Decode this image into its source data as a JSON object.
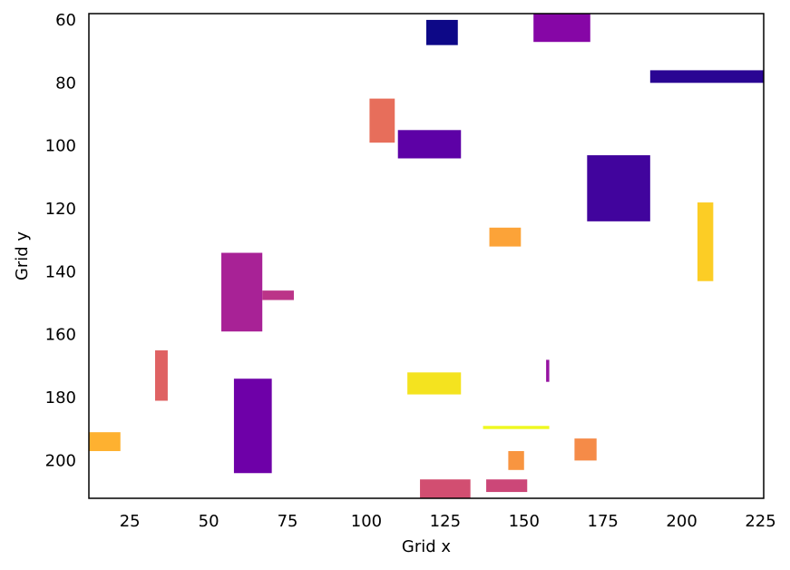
{
  "chart_data": {
    "type": "rectangles",
    "xlabel": "Grid x",
    "ylabel": "Grid y",
    "xlim": [
      12,
      226
    ],
    "ylim": [
      212,
      58
    ],
    "y_inverted": true,
    "grid": false,
    "xticks": [
      25,
      50,
      75,
      100,
      125,
      150,
      175,
      200,
      225
    ],
    "yticks": [
      60,
      80,
      100,
      120,
      140,
      160,
      180,
      200
    ],
    "rects": [
      {
        "x": 119,
        "y": 60,
        "w": 10,
        "h": 8,
        "color": "#0d0887"
      },
      {
        "x": 153,
        "y": 58,
        "w": 18,
        "h": 9,
        "color": "#8606a6"
      },
      {
        "x": 190,
        "y": 76,
        "w": 36,
        "h": 4,
        "color": "#2a0593"
      },
      {
        "x": 101,
        "y": 85,
        "w": 8,
        "h": 14,
        "color": "#e76e5b"
      },
      {
        "x": 110,
        "y": 95,
        "w": 20,
        "h": 9,
        "color": "#5d01a6"
      },
      {
        "x": 170,
        "y": 103,
        "w": 20,
        "h": 21,
        "color": "#41049d"
      },
      {
        "x": 205,
        "y": 118,
        "w": 5,
        "h": 25,
        "color": "#fccd25"
      },
      {
        "x": 139,
        "y": 126,
        "w": 10,
        "h": 6,
        "color": "#fca338"
      },
      {
        "x": 54,
        "y": 134,
        "w": 13,
        "h": 25,
        "color": "#a82296"
      },
      {
        "x": 67,
        "y": 146,
        "w": 10,
        "h": 3,
        "color": "#bb3488"
      },
      {
        "x": 33,
        "y": 165,
        "w": 4,
        "h": 16,
        "color": "#df6263"
      },
      {
        "x": 157,
        "y": 168,
        "w": 1,
        "h": 7,
        "color": "#9613a1"
      },
      {
        "x": 113,
        "y": 172,
        "w": 17,
        "h": 7,
        "color": "#f4e31f"
      },
      {
        "x": 58,
        "y": 174,
        "w": 12,
        "h": 30,
        "color": "#6e00a8"
      },
      {
        "x": 137,
        "y": 189,
        "w": 21,
        "h": 1,
        "color": "#eff821"
      },
      {
        "x": 12,
        "y": 191,
        "w": 10,
        "h": 6,
        "color": "#feb130"
      },
      {
        "x": 166,
        "y": 193,
        "w": 7,
        "h": 7,
        "color": "#f58b48"
      },
      {
        "x": 145,
        "y": 197,
        "w": 5,
        "h": 6,
        "color": "#f89540"
      },
      {
        "x": 117,
        "y": 206,
        "w": 16,
        "h": 6,
        "color": "#d24e71"
      },
      {
        "x": 138,
        "y": 206,
        "w": 13,
        "h": 4,
        "color": "#cc4778"
      }
    ]
  }
}
